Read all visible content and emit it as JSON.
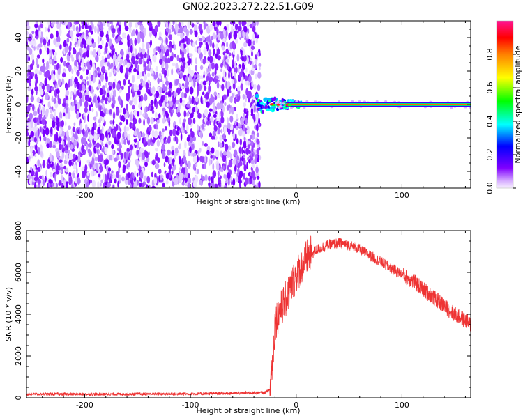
{
  "title": "GN02.2023.272.22.51.G09",
  "chart_data": [
    {
      "type": "heatmap",
      "xlabel": "Height of straight line (km)",
      "ylabel": "Frequency (Hz)",
      "xlim": [
        -255,
        165
      ],
      "ylim": [
        -50,
        50
      ],
      "x_ticks": [
        -200,
        -100,
        0,
        100
      ],
      "y_ticks": [
        -40,
        -20,
        0,
        20,
        40
      ],
      "noise_region_x": [
        -255,
        -37
      ],
      "transition_region_x": [
        -37,
        5
      ],
      "tone_region_x": [
        5,
        165
      ],
      "tone_frequency": 0,
      "colorbar": {
        "label": "Normalized spectral amplitude",
        "ticks": [
          0.0,
          0.2,
          0.4,
          0.6,
          0.8
        ],
        "tick_labels": [
          "0.0",
          "0.2",
          "0.4",
          "0.6",
          "0.8"
        ],
        "range": [
          0,
          1
        ]
      }
    },
    {
      "type": "line",
      "xlabel": "Height of straight line (km)",
      "ylabel": "SNR (10 * v/v)",
      "xlim": [
        -255,
        165
      ],
      "ylim": [
        0,
        8000
      ],
      "x_ticks": [
        -200,
        -100,
        0,
        100
      ],
      "y_ticks": [
        0,
        2000,
        4000,
        6000,
        8000
      ],
      "color": "#ee3333",
      "x": [
        -255,
        -200,
        -150,
        -100,
        -60,
        -30,
        -25,
        -22,
        -20,
        -15,
        -10,
        -5,
        0,
        10,
        20,
        30,
        40,
        50,
        60,
        70,
        80,
        90,
        100,
        110,
        120,
        130,
        140,
        150,
        160,
        165
      ],
      "y": [
        180,
        170,
        180,
        190,
        220,
        250,
        400,
        2000,
        3600,
        4200,
        4700,
        5300,
        5900,
        6700,
        7100,
        7300,
        7400,
        7300,
        7100,
        6800,
        6500,
        6200,
        5900,
        5600,
        5200,
        4800,
        4400,
        4000,
        3700,
        3500
      ]
    }
  ]
}
